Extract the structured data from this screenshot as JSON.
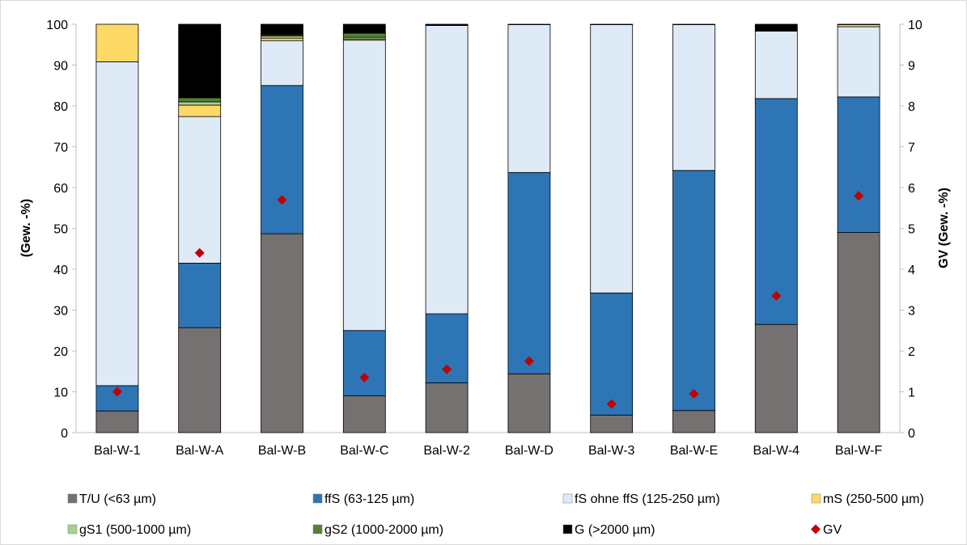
{
  "chart_data": {
    "type": "bar",
    "stacked": true,
    "categories": [
      "Bal-W-1",
      "Bal-W-A",
      "Bal-W-B",
      "Bal-W-C",
      "Bal-W-2",
      "Bal-W-D",
      "Bal-W-3",
      "Bal-W-E",
      "Bal-W-4",
      "Bal-W-F"
    ],
    "series": [
      {
        "name": "T/U (<63 µm)",
        "color": "#767171",
        "values": [
          5.3,
          25.7,
          48.7,
          9.0,
          12.2,
          14.4,
          4.3,
          5.4,
          26.5,
          49.0
        ]
      },
      {
        "name": "ffS (63-125 µm)",
        "color": "#2E75B6",
        "values": [
          6.2,
          15.8,
          36.3,
          16.0,
          16.9,
          49.3,
          29.9,
          58.8,
          55.3,
          33.2
        ]
      },
      {
        "name": "fS ohne ffS (125-250 µm)",
        "color": "#DEEBF7",
        "values": [
          79.3,
          35.9,
          11.0,
          71.1,
          70.6,
          36.2,
          65.7,
          35.7,
          16.5,
          17.2
        ]
      },
      {
        "name": "mS (250-500 µm)",
        "color": "#FFD966",
        "values": [
          9.2,
          2.8,
          0.6,
          0.3,
          0,
          0,
          0,
          0,
          0,
          0.5
        ]
      },
      {
        "name": "gS1 (500-1000 µm)",
        "color": "#A9D18E",
        "values": [
          0,
          0.8,
          0.5,
          0.4,
          0,
          0,
          0,
          0,
          0,
          0.1
        ]
      },
      {
        "name": "gS2 (1000-2000 µm)",
        "color": "#548235",
        "values": [
          0,
          1.0,
          0.3,
          1.0,
          0,
          0,
          0,
          0,
          0,
          0
        ]
      },
      {
        "name": "G (>2000 µm)",
        "color": "#000000",
        "values": [
          0,
          18.0,
          2.6,
          2.2,
          0.3,
          0.1,
          0.1,
          0.1,
          1.7,
          0
        ]
      }
    ],
    "secondary_series": {
      "name": "GV",
      "type": "scatter",
      "marker": "diamond",
      "color": "#C00000",
      "values": [
        1.0,
        4.4,
        5.7,
        1.35,
        1.55,
        1.75,
        0.7,
        0.95,
        3.35,
        5.8
      ]
    },
    "ylabel": "(Gew. -%)",
    "y2label": "GV (Gew. -%)",
    "ylim": [
      0,
      100
    ],
    "y2lim": [
      0,
      10
    ],
    "yticks": [
      "0",
      "10",
      "20",
      "30",
      "40",
      "50",
      "60",
      "70",
      "80",
      "90",
      "100"
    ],
    "y2ticks": [
      "0",
      "1",
      "2",
      "3",
      "4",
      "5",
      "6",
      "7",
      "8",
      "9",
      "10"
    ],
    "grid": false,
    "legend_position": "bottom",
    "legend": [
      "T/U (<63 µm)",
      "ffS (63-125 µm)",
      "fS ohne ffS (125-250 µm)",
      "mS (250-500 µm)",
      "gS1 (500-1000 µm)",
      "gS2 (1000-2000 µm)",
      "G (>2000 µm)",
      "GV"
    ]
  }
}
